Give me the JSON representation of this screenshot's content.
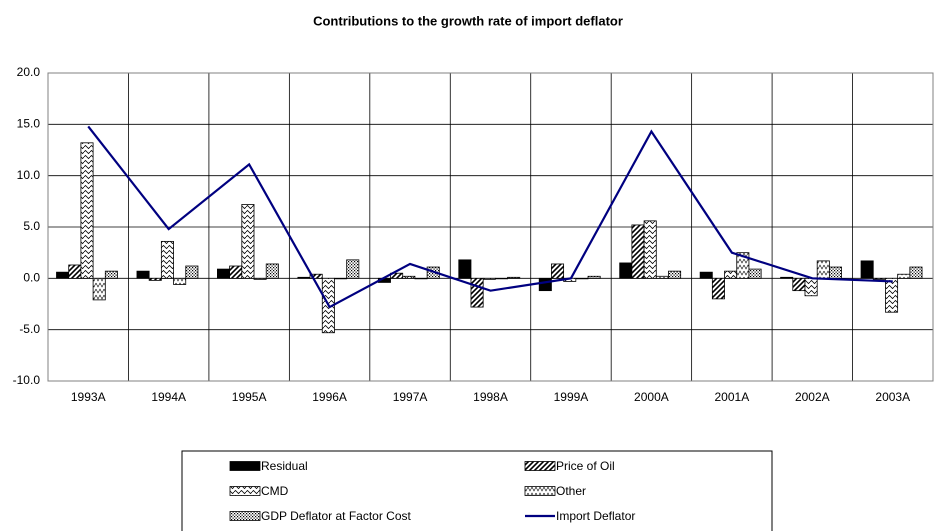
{
  "chart_data": {
    "type": "bar",
    "title": "Contributions to the growth rate of import deflator",
    "categories": [
      "1993A",
      "1994A",
      "1995A",
      "1996A",
      "1997A",
      "1998A",
      "1999A",
      "2000A",
      "2001A",
      "2002A",
      "2003A"
    ],
    "series": [
      {
        "name": "Residual",
        "type": "bar",
        "pattern": "solid",
        "color": "#000000",
        "values": [
          0.6,
          0.7,
          0.9,
          0.1,
          -0.4,
          1.8,
          -1.2,
          1.5,
          0.6,
          0.1,
          1.7
        ]
      },
      {
        "name": "Price of Oil",
        "type": "bar",
        "pattern": "diagonal",
        "color": "#000000",
        "values": [
          1.3,
          -0.2,
          1.2,
          0.4,
          0.5,
          -2.8,
          1.4,
          5.2,
          -2.0,
          -1.2,
          -0.1
        ]
      },
      {
        "name": "CMD",
        "type": "bar",
        "pattern": "wave",
        "color": "#000000",
        "values": [
          13.2,
          3.6,
          7.2,
          -5.3,
          0.2,
          -0.1,
          -0.3,
          5.6,
          0.7,
          -1.7,
          -3.3
        ]
      },
      {
        "name": "Other",
        "type": "bar",
        "pattern": "zigzag",
        "color": "#000000",
        "values": [
          -2.1,
          -0.6,
          -0.1,
          0.0,
          0.0,
          0.0,
          0.0,
          0.2,
          2.5,
          1.7,
          0.4
        ]
      },
      {
        "name": "GDP Deflator at Factor Cost",
        "type": "bar",
        "pattern": "dots",
        "color": "#000000",
        "values": [
          0.7,
          1.2,
          1.4,
          1.8,
          1.1,
          0.1,
          0.2,
          0.7,
          0.9,
          1.1,
          1.1
        ]
      },
      {
        "name": "Import Deflator",
        "type": "line",
        "color": "#000080",
        "values": [
          14.8,
          4.8,
          11.1,
          -2.8,
          1.4,
          -1.2,
          0.0,
          14.3,
          2.5,
          0.0,
          -0.3
        ]
      }
    ],
    "ylim": [
      -10,
      20
    ],
    "yticks": [
      {
        "value": -10,
        "label": "-10.0"
      },
      {
        "value": -5,
        "label": "-5.0"
      },
      {
        "value": 0,
        "label": "0.0"
      },
      {
        "value": 5,
        "label": "5.0"
      },
      {
        "value": 10,
        "label": "10.0"
      },
      {
        "value": 15,
        "label": "15.0"
      },
      {
        "value": 20,
        "label": "20.0"
      }
    ],
    "grid": true,
    "legend": "bottom"
  }
}
